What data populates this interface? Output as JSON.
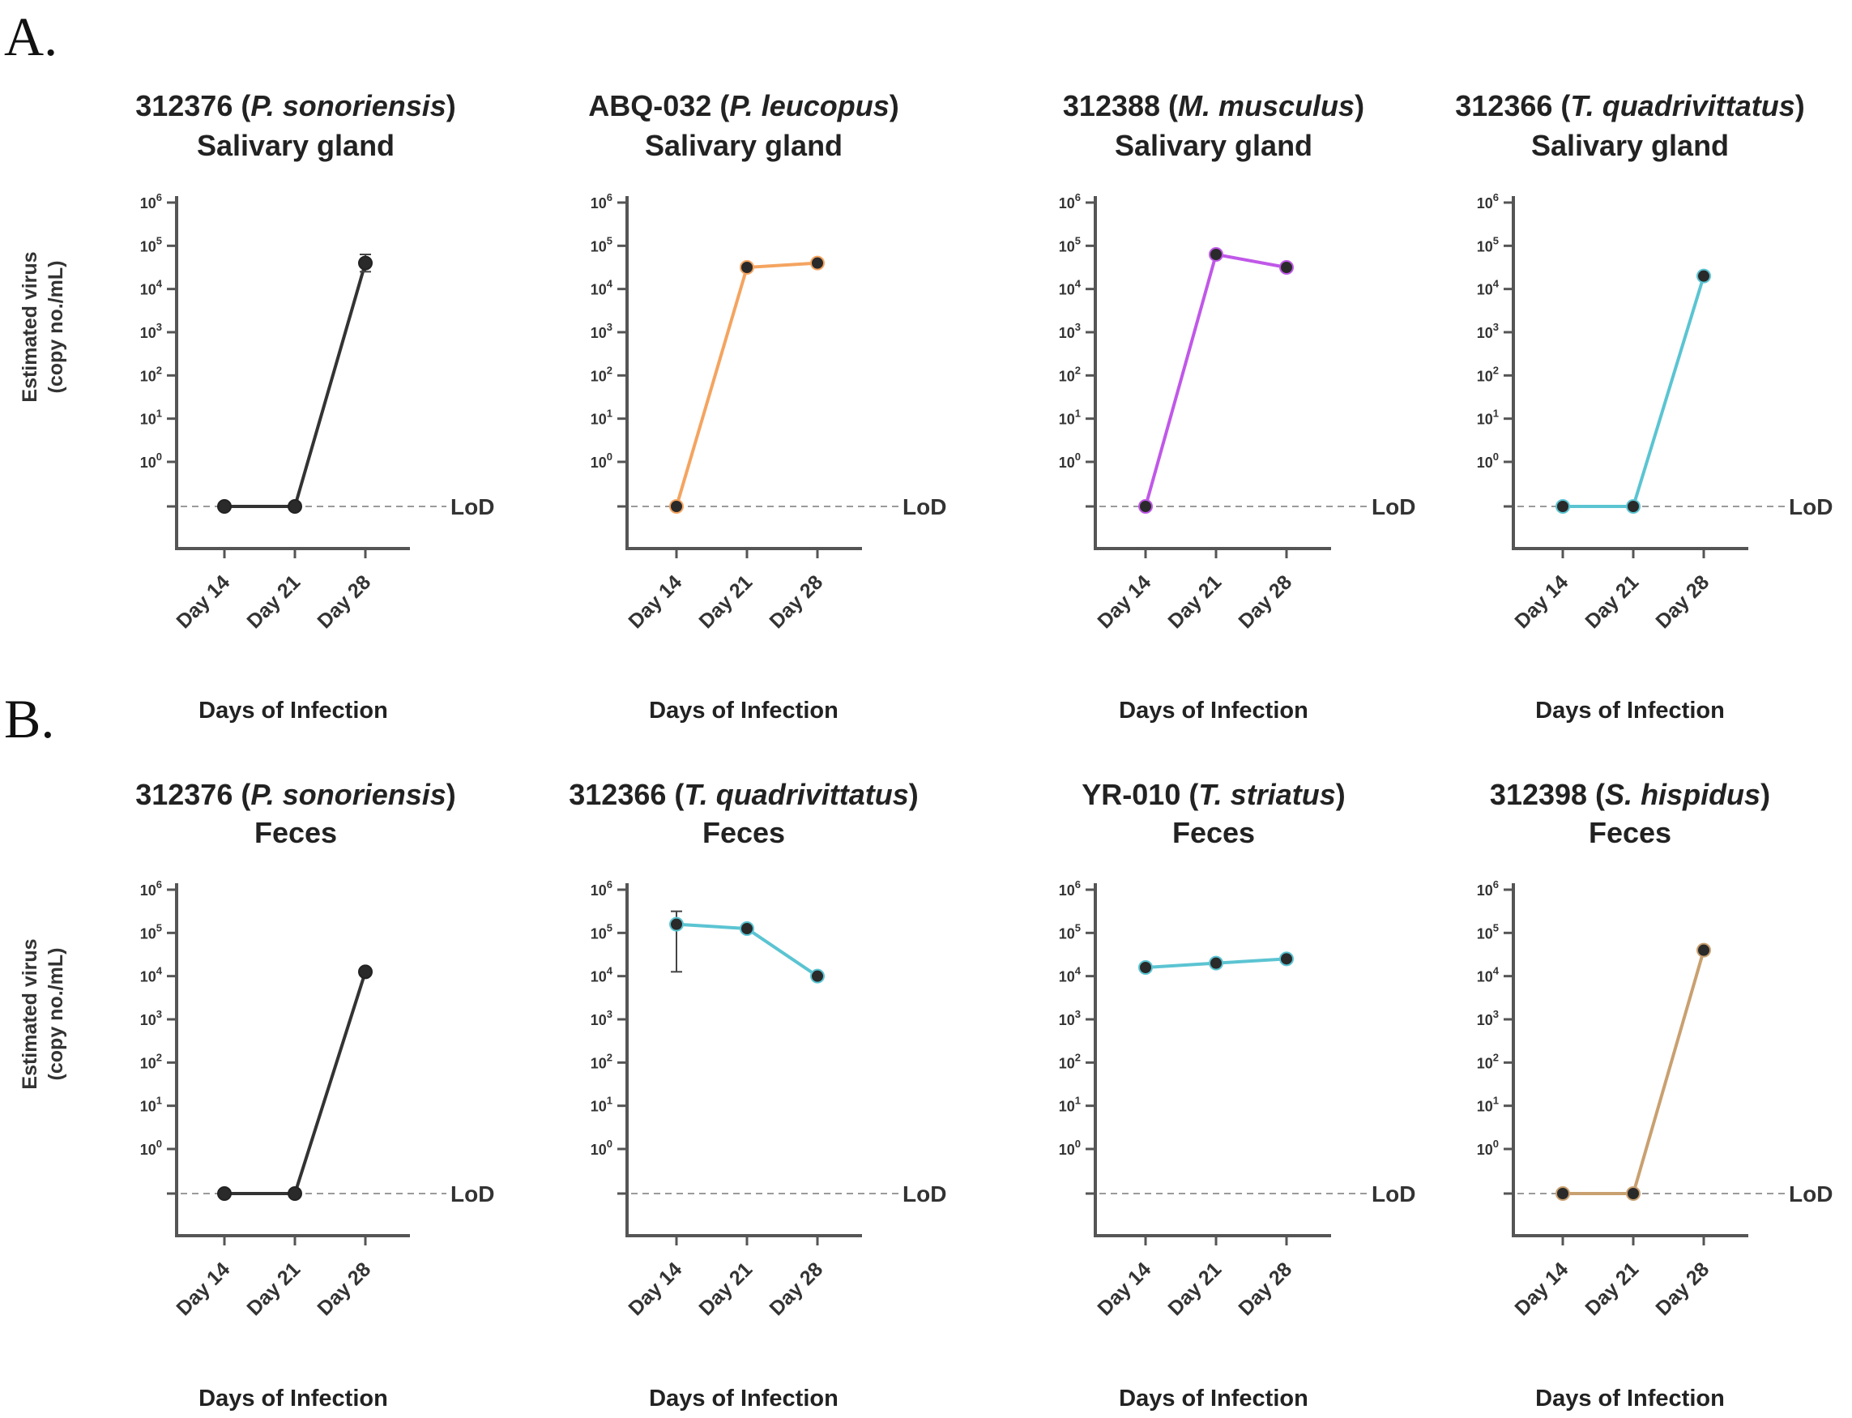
{
  "chart_data": {
    "section_labels": {
      "A": "A.",
      "B": "B."
    },
    "y_label_line1": "Estimated virus",
    "y_label_line2": "(copy no./mL)",
    "x_label": "Days of Infection",
    "categories": [
      "Day 14",
      "Day 21",
      "Day 28"
    ],
    "lod_label": "LoD",
    "type": "line",
    "yscale": "log10",
    "y_ticks": [
      {
        "exp": 0,
        "base": "10",
        "sup": "0"
      },
      {
        "exp": 1,
        "base": "10",
        "sup": "1"
      },
      {
        "exp": 2,
        "base": "10",
        "sup": "2"
      },
      {
        "exp": 3,
        "base": "10",
        "sup": "3"
      },
      {
        "exp": 4,
        "base": "10",
        "sup": "4"
      },
      {
        "exp": 5,
        "base": "10",
        "sup": "5"
      },
      {
        "exp": 6,
        "base": "10",
        "sup": "6"
      }
    ],
    "panels": [
      {
        "section": "A",
        "id_label": "312376",
        "species": "P. sonoriensis",
        "sample": "Salivary gland",
        "color": "#333333",
        "values": [
          null,
          null,
          4.6
        ],
        "err_low": [
          null,
          null,
          4.4
        ],
        "err_high": [
          null,
          null,
          4.8
        ]
      },
      {
        "section": "A",
        "id_label": "ABQ-032",
        "species": "P. leucopus",
        "sample": "Salivary gland",
        "color": "#f4a460",
        "values": [
          null,
          4.5,
          4.6
        ],
        "err_low": [
          null,
          null,
          null
        ],
        "err_high": [
          null,
          null,
          null
        ]
      },
      {
        "section": "A",
        "id_label": "312388",
        "species": "M. musculus",
        "sample": "Salivary gland",
        "color": "#c058e8",
        "values": [
          null,
          4.8,
          4.5
        ],
        "err_low": [
          null,
          null,
          null
        ],
        "err_high": [
          null,
          null,
          null
        ]
      },
      {
        "section": "A",
        "id_label": "312366",
        "species": "T. quadrivittatus",
        "sample": "Salivary gland",
        "color": "#5bc4d2",
        "values": [
          null,
          null,
          4.3
        ],
        "err_low": [
          null,
          null,
          null
        ],
        "err_high": [
          null,
          null,
          null
        ]
      },
      {
        "section": "B",
        "id_label": "312376",
        "species": "P. sonoriensis",
        "sample": "Feces",
        "color": "#333333",
        "values": [
          null,
          null,
          4.1
        ],
        "err_low": [
          null,
          null,
          null
        ],
        "err_high": [
          null,
          null,
          null
        ]
      },
      {
        "section": "B",
        "id_label": "312366",
        "species": "T. quadrivittatus",
        "sample": "Feces",
        "color": "#5bc4d2",
        "values": [
          5.2,
          5.1,
          4.0
        ],
        "err_low": [
          4.1,
          null,
          null
        ],
        "err_high": [
          5.5,
          null,
          null
        ]
      },
      {
        "section": "B",
        "id_label": "YR-010",
        "species": "T. striatus",
        "sample": "Feces",
        "color": "#5bc4d2",
        "values": [
          4.2,
          4.3,
          4.4
        ],
        "err_low": [
          null,
          null,
          null
        ],
        "err_high": [
          null,
          null,
          null
        ]
      },
      {
        "section": "B",
        "id_label": "312398",
        "species": "S. hispidus",
        "sample": "Feces",
        "color": "#c9a070",
        "values": [
          null,
          null,
          4.6
        ],
        "err_low": [
          null,
          null,
          null
        ],
        "err_high": [
          null,
          null,
          null
        ]
      }
    ]
  }
}
